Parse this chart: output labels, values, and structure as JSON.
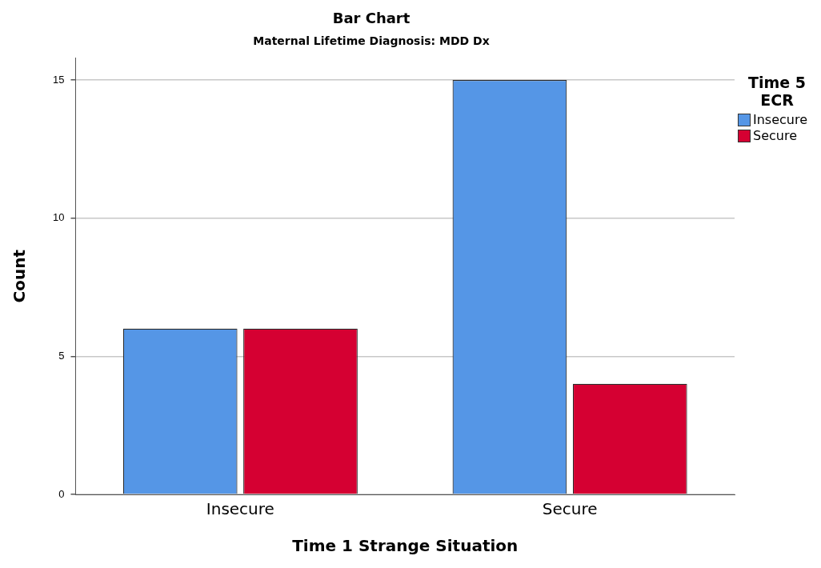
{
  "chart_data": {
    "type": "bar",
    "title": "Bar Chart",
    "subtitle": "Maternal Lifetime Diagnosis: MDD Dx",
    "xlabel": "Time 1 Strange Situation",
    "ylabel": "Count",
    "legend_title": "Time 5 ECR",
    "categories": [
      "Insecure",
      "Secure"
    ],
    "series": [
      {
        "name": "Insecure",
        "color": "#5596e6",
        "values": [
          6,
          15
        ]
      },
      {
        "name": "Secure",
        "color": "#d50032",
        "values": [
          6,
          4
        ]
      }
    ],
    "ylim": [
      0,
      15.8
    ],
    "yticks": [
      0,
      5,
      10,
      15
    ],
    "grid": "y",
    "legend": "top right"
  }
}
